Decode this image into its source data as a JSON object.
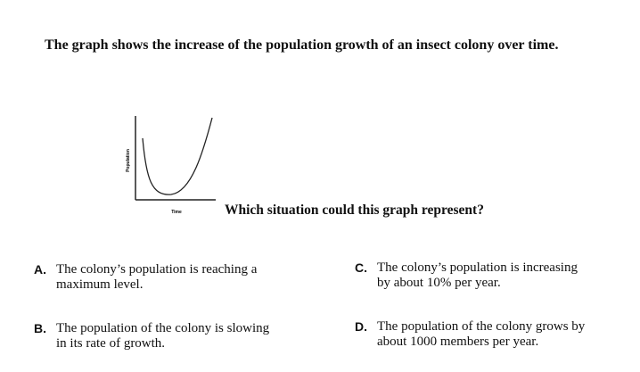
{
  "question": "The graph shows the increase of the population growth of an insect colony over time.",
  "graph": {
    "y_label": "Population",
    "x_label": "Time"
  },
  "prompt": "Which situation could this graph represent?",
  "options": [
    {
      "letter": "A.",
      "lines": [
        "The colony’s population is reaching a",
        "maximum level."
      ]
    },
    {
      "letter": "B.",
      "lines": [
        "The population of the colony is slowing",
        "in its rate of growth."
      ]
    },
    {
      "letter": "C.",
      "lines": [
        "The colony’s population is increasing",
        "by about 10% per year."
      ]
    },
    {
      "letter": "D.",
      "lines": [
        "The population of the colony grows by",
        "about 1000 members per year."
      ]
    }
  ]
}
